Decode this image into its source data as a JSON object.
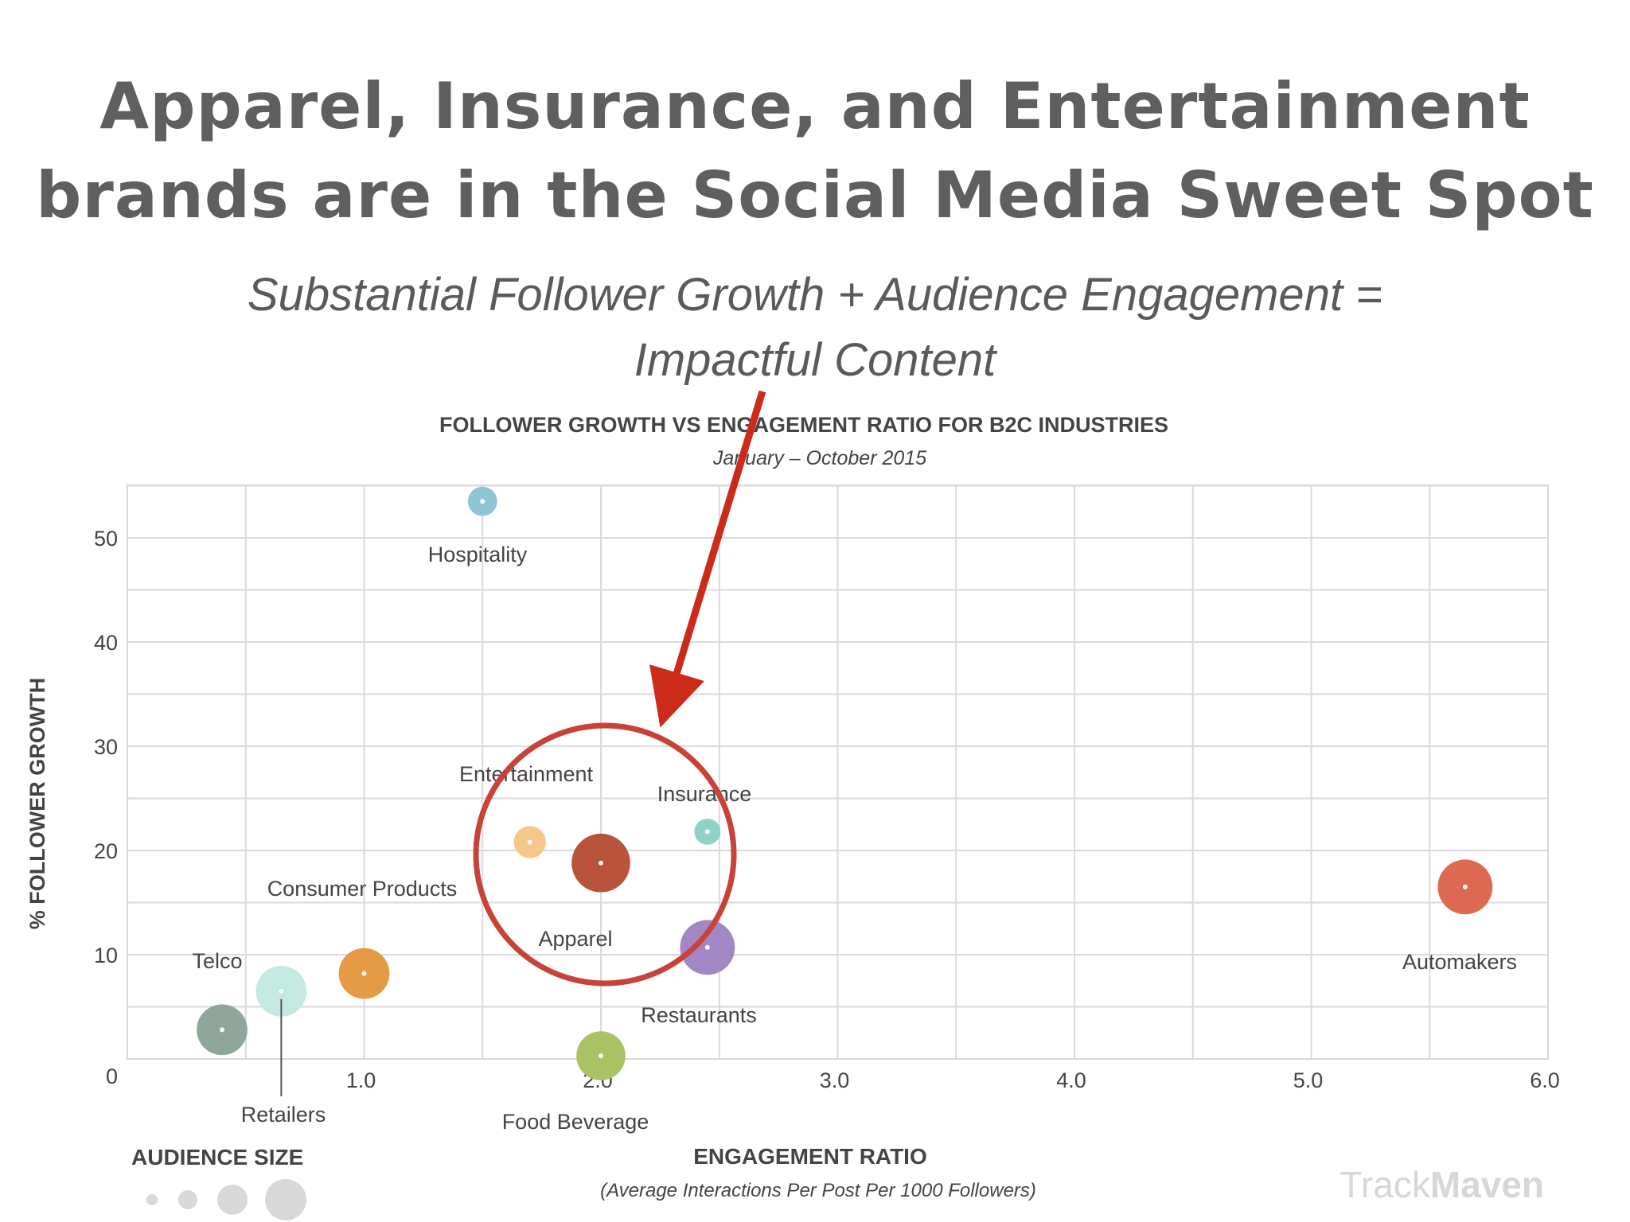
{
  "headline": {
    "line1": "Apparel, Insurance, and Entertainment",
    "line2": "brands are in the Social Media Sweet Spot"
  },
  "subhead": {
    "line1": "Substantial Follower Growth + Audience Engagement =",
    "line2": "Impactful Content"
  },
  "chart_data": {
    "type": "scatter",
    "title": "FOLLOWER GROWTH VS ENGAGEMENT RATIO FOR B2C INDUSTRIES",
    "subtitle": "January – October 2015",
    "xlabel": "ENGAGEMENT RATIO",
    "xlabel_sub": "(Average Interactions Per Post Per 1000 Followers)",
    "ylabel": "% FOLLOWER GROWTH",
    "xlim": [
      0,
      6.0
    ],
    "ylim": [
      0,
      55
    ],
    "x_ticks": [
      "1.0",
      "2.0",
      "3.0",
      "4.0",
      "5.0",
      "6.0"
    ],
    "y_ticks": [
      "0",
      "10",
      "20",
      "30",
      "40",
      "50"
    ],
    "grid": true,
    "legend": "bottom-left",
    "points": [
      {
        "label": "Hospitality",
        "x": 1.5,
        "y": 53.5,
        "size": 1,
        "color": "#8ec6d8"
      },
      {
        "label": "Entertainment",
        "x": 1.7,
        "y": 20.8,
        "size": 1.2,
        "color": "#f5c88a"
      },
      {
        "label": "Apparel",
        "x": 2.0,
        "y": 18.8,
        "size": 4,
        "color": "#b9533c"
      },
      {
        "label": "Insurance",
        "x": 2.45,
        "y": 21.8,
        "size": 0.8,
        "color": "#8fd3c8"
      },
      {
        "label": "Restaurants",
        "x": 2.45,
        "y": 10.7,
        "size": 3.5,
        "color": "#a387c4"
      },
      {
        "label": "Consumer Products",
        "x": 1.0,
        "y": 8.2,
        "size": 3,
        "color": "#e59a45"
      },
      {
        "label": "Retailers",
        "x": 0.65,
        "y": 6.5,
        "size": 3,
        "color": "#c3e9e2"
      },
      {
        "label": "Telco",
        "x": 0.4,
        "y": 2.8,
        "size": 3,
        "color": "#8fa79a"
      },
      {
        "label": "Food Beverage",
        "x": 2.0,
        "y": 0.3,
        "size": 2.8,
        "color": "#a9c264"
      },
      {
        "label": "Automakers",
        "x": 5.65,
        "y": 16.5,
        "size": 3.5,
        "color": "#dd6a50"
      }
    ]
  },
  "legend": {
    "title": "AUDIENCE SIZE"
  },
  "watermark": {
    "part1": "Track",
    "part2": "Maven"
  },
  "colors": {
    "headline": "#5f5f5f",
    "highlight_circle": "#c9423a",
    "arrow": "#cc2a1a",
    "grid": "#d9d9de"
  }
}
